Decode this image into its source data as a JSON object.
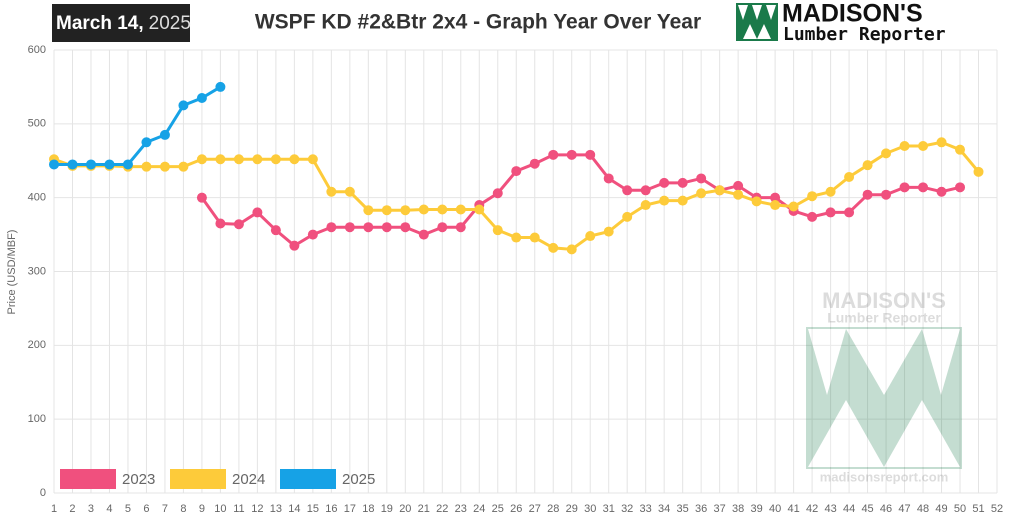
{
  "date_month": "March 14,",
  "date_year": "2025",
  "logo": {
    "title": "MADISON'S",
    "subtitle": "Lumber Reporter"
  },
  "watermark": {
    "title": "MADISON'S",
    "subtitle": "Lumber Reporter",
    "url": "madisonsreport.com"
  },
  "chart_data": {
    "type": "line",
    "title": "WSPF KD #2&Btr 2x4 - Graph Year Over Year",
    "y_label": "Price (USD/MBF)",
    "categories": [
      1,
      2,
      3,
      4,
      5,
      6,
      7,
      8,
      9,
      10,
      11,
      12,
      13,
      14,
      15,
      16,
      17,
      18,
      19,
      20,
      21,
      22,
      23,
      24,
      25,
      26,
      27,
      28,
      29,
      30,
      31,
      32,
      33,
      34,
      35,
      36,
      37,
      38,
      39,
      40,
      41,
      42,
      43,
      44,
      45,
      46,
      47,
      48,
      49,
      50,
      51,
      52
    ],
    "ylim": [
      0,
      600
    ],
    "yticks": [
      0,
      100,
      200,
      300,
      400,
      500,
      600
    ],
    "grid": true,
    "legend": "bottom-left",
    "series": [
      {
        "name": "2023",
        "color": "#f0507e",
        "values": [
          null,
          null,
          null,
          null,
          null,
          null,
          null,
          null,
          400,
          365,
          364,
          380,
          356,
          335,
          350,
          360,
          360,
          360,
          360,
          360,
          350,
          360,
          360,
          390,
          406,
          436,
          446,
          458,
          458,
          458,
          426,
          410,
          410,
          420,
          420,
          426,
          410,
          416,
          400,
          400,
          382,
          374,
          380,
          380,
          404,
          404,
          414,
          414,
          408,
          414,
          null,
          null
        ]
      },
      {
        "name": "2024",
        "color": "#fdcb3a",
        "values": [
          452,
          443,
          443,
          443,
          442,
          442,
          442,
          442,
          452,
          452,
          452,
          452,
          452,
          452,
          452,
          408,
          408,
          383,
          383,
          383,
          384,
          384,
          384,
          384,
          356,
          346,
          346,
          332,
          330,
          348,
          354,
          374,
          390,
          396,
          396,
          406,
          410,
          404,
          395,
          390,
          388,
          402,
          408,
          428,
          444,
          460,
          470,
          470,
          475,
          465,
          435,
          null
        ]
      },
      {
        "name": "2025",
        "color": "#16a2e6",
        "values": [
          445,
          445,
          445,
          445,
          445,
          475,
          485,
          525,
          535,
          550,
          null,
          null,
          null,
          null,
          null,
          null,
          null,
          null,
          null,
          null,
          null,
          null,
          null,
          null,
          null,
          null,
          null,
          null,
          null,
          null,
          null,
          null,
          null,
          null,
          null,
          null,
          null,
          null,
          null,
          null,
          null,
          null,
          null,
          null,
          null,
          null,
          null,
          null,
          null,
          null,
          null,
          null
        ]
      }
    ]
  }
}
